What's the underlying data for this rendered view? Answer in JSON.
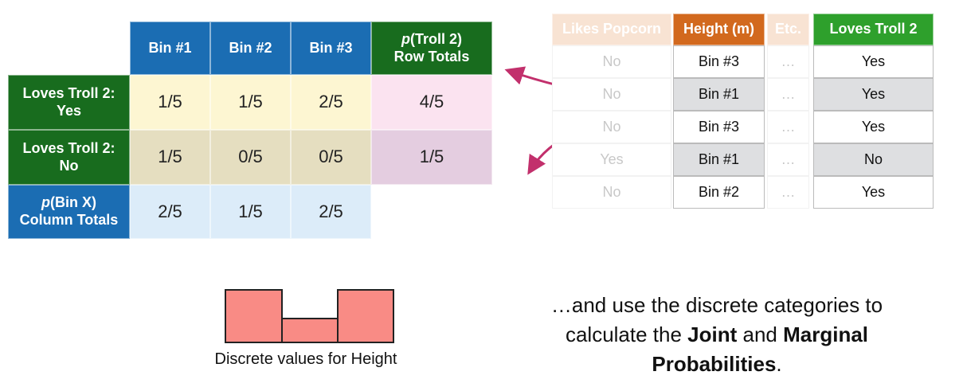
{
  "joint_table": {
    "columns": [
      "Bin #1",
      "Bin #2",
      "Bin #3"
    ],
    "totals_header": {
      "italic": "p",
      "text": "(Troll 2)",
      "line2": "Row Totals"
    },
    "rows": [
      {
        "label": [
          "Loves Troll 2:",
          "Yes"
        ],
        "cells": [
          "1/5",
          "1/5",
          "2/5"
        ],
        "total": "4/5"
      },
      {
        "label": [
          "Loves Troll 2:",
          "No"
        ],
        "cells": [
          "1/5",
          "0/5",
          "0/5"
        ],
        "total": "1/5"
      }
    ],
    "column_totals": {
      "label": {
        "italic": "p",
        "text": "(Bin X)",
        "line2": "Column Totals"
      },
      "cells": [
        "2/5",
        "1/5",
        "2/5"
      ]
    }
  },
  "data_table": {
    "headers": [
      "Likes Popcorn",
      "Height (m)",
      "Etc.",
      "Loves Troll 2"
    ],
    "rows": [
      [
        "No",
        "Bin #3",
        "…",
        "Yes"
      ],
      [
        "No",
        "Bin #1",
        "…",
        "Yes"
      ],
      [
        "No",
        "Bin #3",
        "…",
        "Yes"
      ],
      [
        "Yes",
        "Bin #1",
        "…",
        "No"
      ],
      [
        "No",
        "Bin #2",
        "…",
        "Yes"
      ]
    ]
  },
  "histogram_caption": "Discrete values for Height",
  "caption": {
    "lines": [
      [
        {
          "text": "…and use the discrete categories to"
        }
      ],
      [
        {
          "text": "calculate the "
        },
        {
          "text": "Joint",
          "bold": true
        },
        {
          "text": " and "
        },
        {
          "text": "Marginal",
          "bold": true
        }
      ],
      [
        {
          "text": "Probabilities",
          "bold": true
        },
        {
          "text": "."
        }
      ]
    ]
  }
}
